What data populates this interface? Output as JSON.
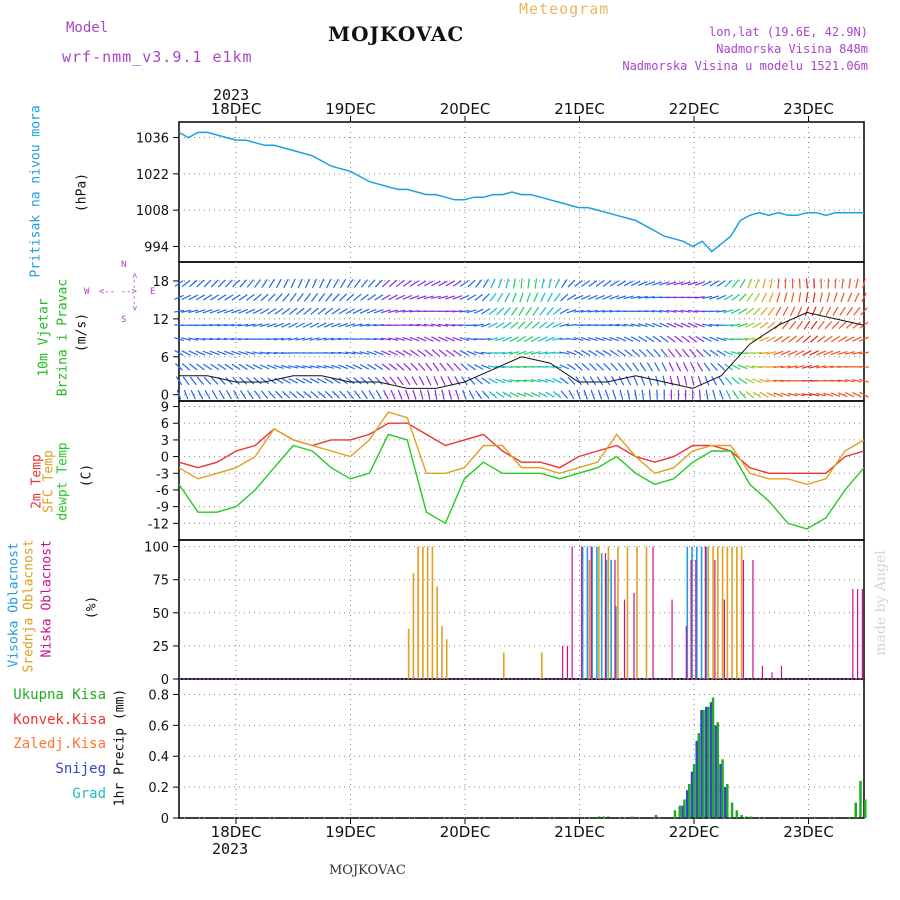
{
  "header": {
    "model_label": "Model",
    "model_name": "wrf-nmm_v3.9.1 e1km",
    "station": "MOJKOVAC",
    "product": "Meteogram",
    "lonlat": "lon,lat (19.6E, 42.9N)",
    "elevation": "Nadmorska Visina 848m",
    "model_elevation": "Nadmorska Visina u modelu 1521.06m",
    "footer_station": "MOJKOVAC",
    "credit": "made by Angel"
  },
  "colors": {
    "pressure": "#1f9ee0",
    "t2m": "#ee3333",
    "sfc": "#e0a020",
    "dewpt": "#22cc22",
    "high_cloud": "#1f9ee0",
    "mid_cloud": "#e0a020",
    "low_cloud": "#cc1188",
    "total_precip": "#22aa22",
    "conv": "#ee3333",
    "frz": "#ff7733",
    "snow": "#3344cc",
    "grad": "#22bbbb",
    "wind_label": "#22bb22",
    "wind_dir": "#aa44cc"
  },
  "chart_data": {
    "type": "line",
    "top_year": "2023",
    "bottom_year": "2023",
    "days": [
      "18DEC",
      "19DEC",
      "20DEC",
      "21DEC",
      "22DEC",
      "23DEC"
    ],
    "panels": {
      "pressure": {
        "label": "Pritisak na nivou mora",
        "unit": "(hPa)",
        "ylim": [
          988,
          1042
        ],
        "yticks": [
          "994",
          "1008",
          "1022",
          "1036"
        ],
        "x": [
          0,
          2,
          4,
          6,
          8,
          10,
          12,
          14,
          16,
          18,
          20,
          22,
          24,
          26,
          28,
          30,
          32,
          34,
          36,
          38,
          40,
          42,
          44,
          46,
          48,
          50,
          52,
          54,
          56,
          58,
          60,
          62,
          64,
          66,
          68,
          70,
          72,
          74,
          76,
          78,
          80,
          82,
          84,
          86,
          88,
          90,
          92,
          94,
          96,
          98,
          100,
          102,
          104,
          106,
          108,
          110,
          112,
          114,
          116,
          118,
          120,
          122,
          124,
          126,
          128,
          130,
          132,
          134,
          136,
          138,
          140,
          142,
          144
        ],
        "values": [
          1038,
          1036,
          1038,
          1038,
          1037,
          1036,
          1035,
          1035,
          1034,
          1033,
          1033,
          1032,
          1031,
          1030,
          1029,
          1027,
          1025,
          1024,
          1023,
          1021,
          1019,
          1018,
          1017,
          1016,
          1016,
          1015,
          1014,
          1014,
          1013,
          1012,
          1012,
          1013,
          1013,
          1014,
          1014,
          1015,
          1014,
          1014,
          1013,
          1012,
          1011,
          1010,
          1009,
          1009,
          1008,
          1007,
          1006,
          1005,
          1004,
          1002,
          1000,
          998,
          997,
          996,
          994,
          996,
          992,
          995,
          998,
          1004,
          1006,
          1007,
          1006,
          1007,
          1006,
          1006,
          1007,
          1007,
          1006,
          1007,
          1007,
          1007,
          1007
        ]
      },
      "wind": {
        "label_line1": "10m Vjetar",
        "label_line2": "Brzina i Pravac",
        "unit": "(m/s)",
        "compass_n": "N",
        "compass_s": "S",
        "compass_e": "E",
        "compass_w": "W",
        "compass_arrow_lr": "<-- -->",
        "ylim": [
          -1,
          21
        ],
        "yticks": [
          "0",
          "6",
          "12",
          "18"
        ],
        "x": [
          0,
          6,
          12,
          18,
          24,
          30,
          36,
          42,
          48,
          54,
          60,
          66,
          72,
          78,
          84,
          90,
          96,
          102,
          108,
          114,
          120,
          126,
          132,
          138,
          144
        ],
        "speed": [
          3,
          3,
          2,
          2,
          3,
          3,
          2,
          2,
          1,
          1,
          2,
          4,
          6,
          5,
          2,
          2,
          3,
          2,
          1,
          3,
          8,
          11,
          13,
          12,
          11
        ],
        "direction": [
          200,
          210,
          210,
          220,
          230,
          230,
          220,
          210,
          200,
          190,
          200,
          230,
          250,
          240,
          200,
          200,
          190,
          180,
          180,
          200,
          230,
          250,
          260,
          250,
          240
        ]
      },
      "temperature": {
        "label_t2m": "2m Temp",
        "label_sfc": "SFC Temp",
        "label_dewpt": "dewpt Temp",
        "unit": "(C)",
        "ylim": [
          -15,
          10
        ],
        "yticks": [
          "-12",
          "-9",
          "-6",
          "-3",
          "0",
          "3",
          "6",
          "9"
        ],
        "x": [
          0,
          4,
          8,
          12,
          16,
          20,
          24,
          28,
          32,
          36,
          40,
          44,
          48,
          52,
          56,
          60,
          64,
          68,
          72,
          76,
          80,
          84,
          88,
          92,
          96,
          100,
          104,
          108,
          112,
          116,
          120,
          124,
          128,
          132,
          136,
          140,
          144
        ],
        "t2m": [
          -1,
          -2,
          -1,
          1,
          2,
          5,
          3,
          2,
          3,
          3,
          4,
          6,
          6,
          4,
          2,
          3,
          4,
          1,
          -1,
          -1,
          -2,
          0,
          1,
          2,
          0,
          -1,
          0,
          2,
          2,
          1,
          -2,
          -3,
          -3,
          -3,
          -3,
          0,
          1
        ],
        "sfc": [
          -2,
          -4,
          -3,
          -2,
          0,
          5,
          3,
          2,
          1,
          0,
          3,
          8,
          7,
          -3,
          -3,
          -2,
          2,
          2,
          -2,
          -2,
          -3,
          -2,
          -1,
          4,
          0,
          -3,
          -2,
          1,
          2,
          2,
          -3,
          -4,
          -4,
          -5,
          -4,
          1,
          3
        ],
        "dewpt": [
          -5,
          -10,
          -10,
          -9,
          -6,
          -2,
          2,
          1,
          -2,
          -4,
          -3,
          4,
          3,
          -10,
          -12,
          -4,
          -1,
          -3,
          -3,
          -3,
          -4,
          -3,
          -2,
          0,
          -3,
          -5,
          -4,
          -1,
          1,
          1,
          -5,
          -8,
          -12,
          -13,
          -11,
          -6,
          -2
        ]
      },
      "clouds": {
        "label_high": "Visoka Oblacnost",
        "label_mid": "Srednja Oblacnost",
        "label_low": "Niska Oblacnost",
        "unit": "(%)",
        "ylim": [
          0,
          105
        ],
        "yticks": [
          "0",
          "25",
          "50",
          "75",
          "100"
        ],
        "high": {
          "x": [
            85,
            86,
            87,
            88,
            89,
            90,
            91,
            92,
            107,
            108,
            109,
            110,
            111
          ],
          "values": [
            100,
            100,
            100,
            100,
            95,
            90,
            90,
            55,
            100,
            100,
            100,
            100,
            100
          ]
        },
        "mid": {
          "x": [
            48,
            49,
            50,
            51,
            52,
            53,
            54,
            55,
            56,
            57,
            68,
            76,
            86,
            88,
            90,
            92,
            94,
            96,
            98,
            111,
            112,
            113,
            114,
            115,
            116,
            117,
            118
          ],
          "values": [
            38,
            80,
            100,
            100,
            100,
            100,
            70,
            40,
            30,
            0,
            20,
            20,
            90,
            100,
            100,
            100,
            100,
            100,
            100,
            100,
            100,
            100,
            100,
            100,
            100,
            100,
            100
          ]
        },
        "low": {
          "x": [
            80,
            81,
            82,
            84,
            86,
            89,
            91,
            93,
            95,
            99,
            103,
            106,
            107,
            108,
            110,
            112,
            114,
            118,
            120,
            122,
            124,
            126,
            141,
            142,
            143
          ],
          "values": [
            25,
            25,
            100,
            100,
            100,
            95,
            90,
            60,
            65,
            100,
            60,
            40,
            90,
            90,
            100,
            90,
            60,
            90,
            90,
            10,
            5,
            10,
            68,
            68,
            68
          ]
        }
      },
      "precip": {
        "label_total": "Ukupna Kisa",
        "label_conv": "Konvek.Kisa",
        "label_frz": "Zaledj.Kisa",
        "label_snow": "Snijeg",
        "label_grad": "Grad",
        "unit": "1hr Precip (mm)",
        "ylim": [
          0,
          0.9
        ],
        "yticks": [
          "0",
          "0.2",
          "0.4",
          "0.6",
          "0.8"
        ],
        "total": {
          "x": [
            88,
            89,
            90,
            95,
            100,
            104,
            105,
            106,
            107,
            108,
            109,
            110,
            111,
            112,
            113,
            114,
            115,
            116,
            117,
            118,
            119,
            120,
            121,
            122,
            142,
            143,
            144
          ],
          "values": [
            0.01,
            0.01,
            0.01,
            0.01,
            0.02,
            0.05,
            0.08,
            0.12,
            0.22,
            0.35,
            0.55,
            0.7,
            0.72,
            0.78,
            0.62,
            0.38,
            0.22,
            0.1,
            0.05,
            0.02,
            0.01,
            0.01,
            0.0,
            0.0,
            0.1,
            0.24,
            0.12
          ]
        },
        "snow": {
          "x": [
            106,
            107,
            108,
            109,
            110,
            111,
            112,
            113,
            114,
            115
          ],
          "values": [
            0.08,
            0.18,
            0.3,
            0.5,
            0.7,
            0.72,
            0.75,
            0.6,
            0.35,
            0.2
          ]
        }
      }
    }
  }
}
